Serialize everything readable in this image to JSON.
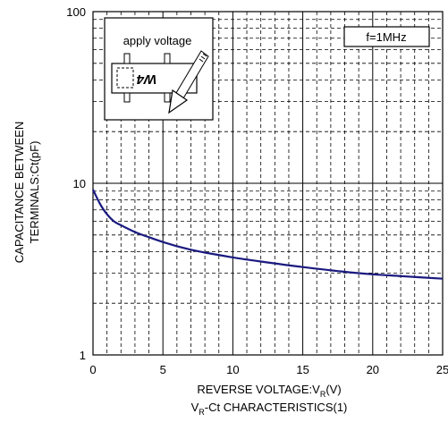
{
  "chart_data": {
    "type": "line",
    "title": "V_R-Ct CHARACTERISTICS(1)",
    "caption_main": "V",
    "caption_sub": "R",
    "caption_rest": "-Ct CHARACTERISTICS(1)",
    "xlabel": "REVERSE VOLTAGE:V_R(V)",
    "xlabel_main": "REVERSE VOLTAGE:V",
    "xlabel_sub": "R",
    "xlabel_rest": "(V)",
    "ylabel_line1": "CAPACITANCE BETWEEN",
    "ylabel_line2": "TERMINALS:Ct(pF)",
    "x_scale": "linear",
    "y_scale": "log",
    "xlim": [
      0,
      25
    ],
    "ylim": [
      1,
      100
    ],
    "x_ticks": [
      "0",
      "5",
      "10",
      "15",
      "20",
      "25"
    ],
    "y_ticks": [
      "1",
      "10",
      "100"
    ],
    "grid": true,
    "annotation_condition": "f=1MHz",
    "inset_label": "apply voltage",
    "inset_marking": "W4",
    "series": [
      {
        "x": [
          0,
          0.5,
          1,
          1.5,
          2,
          3,
          4,
          5,
          6,
          7,
          8,
          10,
          12,
          15,
          18,
          20,
          22,
          25
        ],
        "y": [
          9.2,
          7.6,
          6.6,
          6.0,
          5.7,
          5.2,
          4.85,
          4.55,
          4.3,
          4.1,
          3.95,
          3.7,
          3.5,
          3.25,
          3.05,
          2.95,
          2.88,
          2.78
        ],
        "color": "#1a1a80"
      }
    ]
  }
}
